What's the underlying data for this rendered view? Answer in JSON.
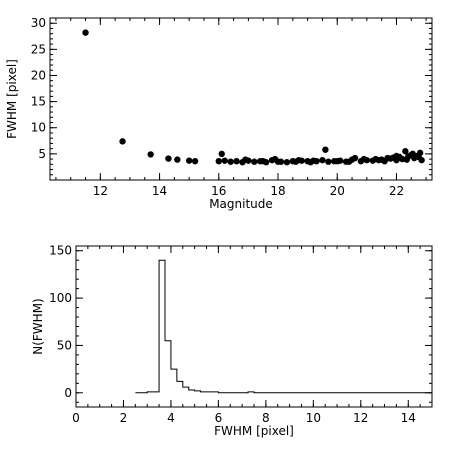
{
  "chart_data": [
    {
      "type": "scatter",
      "xlabel": "Magnitude",
      "ylabel": "FWHM [pixel]",
      "xlim": [
        10.3,
        23.2
      ],
      "ylim": [
        0,
        31
      ],
      "xticks": [
        12,
        14,
        16,
        18,
        20,
        22
      ],
      "yticks": [
        5,
        10,
        15,
        20,
        25,
        30
      ],
      "x": [
        11.5,
        12.75,
        13.7,
        14.3,
        14.6,
        15.0,
        15.2,
        16.0,
        16.1,
        16.4,
        16.6,
        16.8,
        17.0,
        17.2,
        17.4,
        17.6,
        17.8,
        17.9,
        18.1,
        18.3,
        18.5,
        18.6,
        18.8,
        19.0,
        19.1,
        19.3,
        19.5,
        19.6,
        19.7,
        19.9,
        20.1,
        20.3,
        20.5,
        20.6,
        20.8,
        21.0,
        21.2,
        21.3,
        21.5,
        21.6,
        21.8,
        21.9,
        22.0,
        22.1,
        22.2,
        22.3,
        22.4,
        22.5,
        22.6,
        22.7,
        22.8,
        22.85,
        16.2,
        16.9,
        17.5,
        18.0,
        18.7,
        19.2,
        20.0,
        20.4,
        20.9,
        21.4,
        21.7,
        22.0,
        22.35,
        22.55,
        22.75
      ],
      "y": [
        28.2,
        7.4,
        4.9,
        4.1,
        3.9,
        3.7,
        3.6,
        3.6,
        5.0,
        3.5,
        3.6,
        3.4,
        3.7,
        3.5,
        3.6,
        3.4,
        3.8,
        4.0,
        3.5,
        3.4,
        3.6,
        3.5,
        3.7,
        3.6,
        3.4,
        3.6,
        3.8,
        5.8,
        3.5,
        3.6,
        3.7,
        3.5,
        3.9,
        4.2,
        3.6,
        3.8,
        3.7,
        4.0,
        3.9,
        3.6,
        4.1,
        4.3,
        3.8,
        4.4,
        4.0,
        5.5,
        4.5,
        4.8,
        4.2,
        4.6,
        5.2,
        3.8,
        3.7,
        3.9,
        3.6,
        3.5,
        3.8,
        3.7,
        3.6,
        3.5,
        4.0,
        3.8,
        4.2,
        4.6,
        3.9,
        5.0,
        4.4
      ]
    },
    {
      "type": "histogram",
      "xlabel": "FWHM [pixel]",
      "ylabel": "N(FWHM)",
      "xlim": [
        0,
        15
      ],
      "ylim": [
        -15,
        155
      ],
      "xticks": [
        0,
        2,
        4,
        6,
        8,
        10,
        12,
        14
      ],
      "yticks": [
        0,
        50,
        100,
        150
      ],
      "bin_edges": [
        2.5,
        3.0,
        3.5,
        3.75,
        4.0,
        4.25,
        4.5,
        4.75,
        5.0,
        5.25,
        5.5,
        6.0,
        6.5,
        7.0,
        7.25,
        7.5,
        8.0,
        15.0
      ],
      "counts": [
        0,
        1,
        140,
        55,
        25,
        12,
        6,
        3,
        2,
        1,
        1,
        0,
        0,
        0,
        1,
        0,
        0
      ]
    }
  ]
}
